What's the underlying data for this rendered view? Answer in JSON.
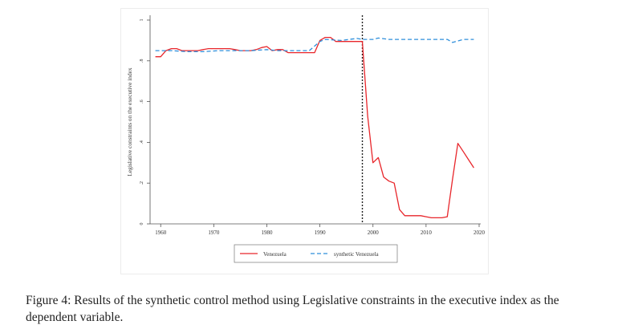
{
  "chart_data": {
    "type": "line",
    "title": "",
    "xlabel": "",
    "ylabel": "Legislative constraints on the executive index",
    "xlim": [
      1958,
      2020
    ],
    "ylim": [
      0,
      1
    ],
    "x_ticks": [
      "1960",
      "1970",
      "1980",
      "1990",
      "2000",
      "2010",
      "2020"
    ],
    "y_ticks": [
      "0",
      ".2",
      ".4",
      ".6",
      ".8",
      "1"
    ],
    "treatment_year": 1998,
    "grid": false,
    "legend_position": "bottom",
    "series": [
      {
        "name": "Venezuela",
        "color": "#e8262b",
        "dash": "solid",
        "x": [
          1959,
          1960,
          1961,
          1962,
          1963,
          1964,
          1965,
          1966,
          1967,
          1968,
          1969,
          1970,
          1971,
          1972,
          1973,
          1974,
          1975,
          1976,
          1977,
          1978,
          1979,
          1980,
          1981,
          1982,
          1983,
          1984,
          1985,
          1986,
          1987,
          1988,
          1989,
          1990,
          1991,
          1992,
          1993,
          1994,
          1995,
          1996,
          1997,
          1998,
          1999,
          2000,
          2001,
          2002,
          2003,
          2004,
          2005,
          2006,
          2007,
          2008,
          2009,
          2010,
          2011,
          2012,
          2013,
          2014,
          2015,
          2016,
          2017,
          2018,
          2019
        ],
        "y": [
          0.82,
          0.82,
          0.85,
          0.86,
          0.86,
          0.85,
          0.85,
          0.85,
          0.85,
          0.855,
          0.86,
          0.86,
          0.86,
          0.86,
          0.86,
          0.855,
          0.85,
          0.85,
          0.85,
          0.855,
          0.865,
          0.87,
          0.85,
          0.855,
          0.855,
          0.84,
          0.84,
          0.84,
          0.84,
          0.84,
          0.84,
          0.9,
          0.915,
          0.915,
          0.895,
          0.895,
          0.895,
          0.895,
          0.895,
          0.895,
          0.53,
          0.3,
          0.325,
          0.23,
          0.21,
          0.2,
          0.07,
          0.04,
          0.04,
          0.04,
          0.04,
          0.035,
          0.03,
          0.03,
          0.03,
          0.035,
          0.22,
          0.395,
          0.355,
          0.315,
          0.275
        ]
      },
      {
        "name": "synthetic Venezuela",
        "color": "#2f8fdb",
        "dash": "dashed",
        "x": [
          1959,
          1962,
          1965,
          1968,
          1971,
          1974,
          1977,
          1980,
          1982,
          1985,
          1988,
          1990,
          1991,
          1994,
          1997,
          1998,
          2000,
          2001,
          2003,
          2005,
          2008,
          2011,
          2014,
          2015,
          2017,
          2019
        ],
        "y": [
          0.85,
          0.85,
          0.845,
          0.845,
          0.85,
          0.85,
          0.85,
          0.855,
          0.85,
          0.85,
          0.85,
          0.895,
          0.905,
          0.9,
          0.91,
          0.905,
          0.905,
          0.912,
          0.905,
          0.905,
          0.905,
          0.905,
          0.905,
          0.89,
          0.905,
          0.905
        ]
      }
    ]
  },
  "caption": "Figure 4: Results of the synthetic control method using Legislative constraints in the executive index as the dependent variable."
}
